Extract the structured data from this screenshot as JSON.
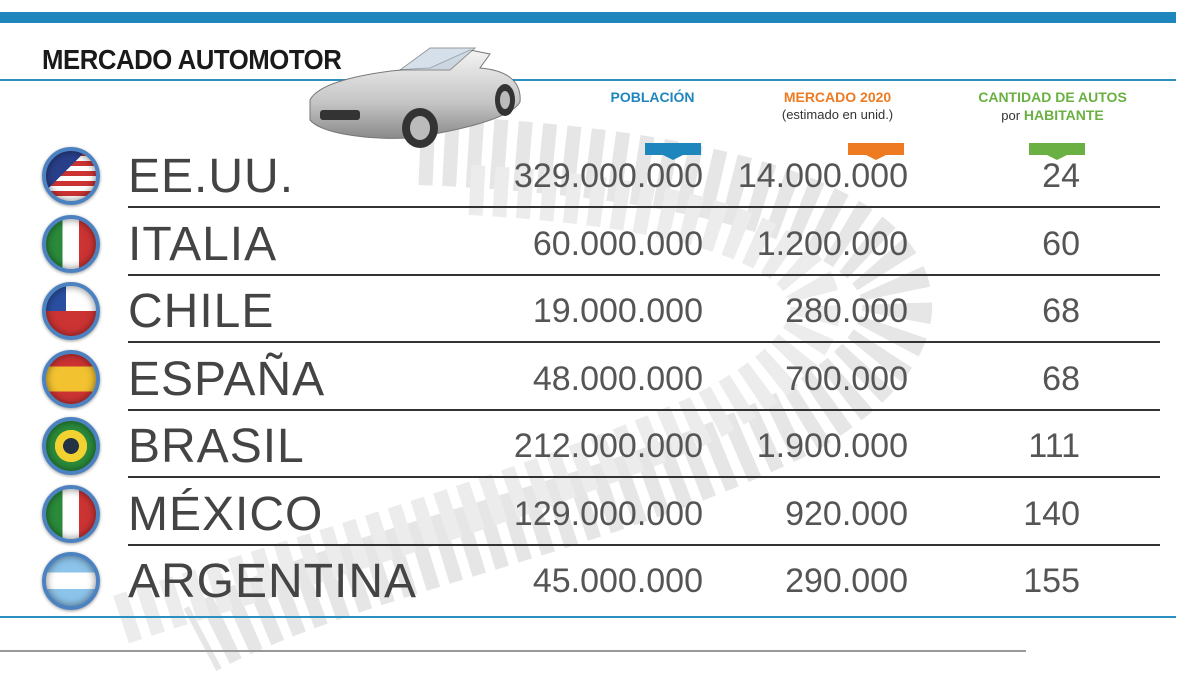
{
  "title": "MERCADO AUTOMOTOR",
  "colors": {
    "poblacion": "#1f86bd",
    "mercado": "#ee7a22",
    "autos": "#6ab042",
    "accent": "#1f86bd"
  },
  "headers": {
    "poblacion": "POBLACIÓN",
    "mercado": "MERCADO 2020",
    "mercado_sub": "(estimado en unid.)",
    "autos": "CANTIDAD DE AUTOS",
    "autos_pre": "por",
    "autos_sub": "HABITANTE"
  },
  "chart_data": {
    "type": "table",
    "title": "MERCADO AUTOMOTOR",
    "columns": [
      "POBLACIÓN",
      "MERCADO 2020 (estimado en unid.)",
      "CANTIDAD DE AUTOS por HABITANTE"
    ],
    "rows": [
      {
        "country": "EE.UU.",
        "flag": "usa-flag",
        "poblacion": "329.000.000",
        "mercado": "14.000.000",
        "autos": "24"
      },
      {
        "country": "ITALIA",
        "flag": "italy-flag",
        "poblacion": "60.000.000",
        "mercado": "1.200.000",
        "autos": "60"
      },
      {
        "country": "CHILE",
        "flag": "chile-flag",
        "poblacion": "19.000.000",
        "mercado": "280.000",
        "autos": "68"
      },
      {
        "country": "ESPAÑA",
        "flag": "spain-flag",
        "poblacion": "48.000.000",
        "mercado": "700.000",
        "autos": "68"
      },
      {
        "country": "BRASIL",
        "flag": "brazil-flag",
        "poblacion": "212.000.000",
        "mercado": "1.900.000",
        "autos": "111"
      },
      {
        "country": "MÉXICO",
        "flag": "mexico-flag",
        "poblacion": "129.000.000",
        "mercado": "920.000",
        "autos": "140"
      },
      {
        "country": "ARGENTINA",
        "flag": "argentina-flag",
        "poblacion": "45.000.000",
        "mercado": "290.000",
        "autos": "155"
      }
    ]
  }
}
